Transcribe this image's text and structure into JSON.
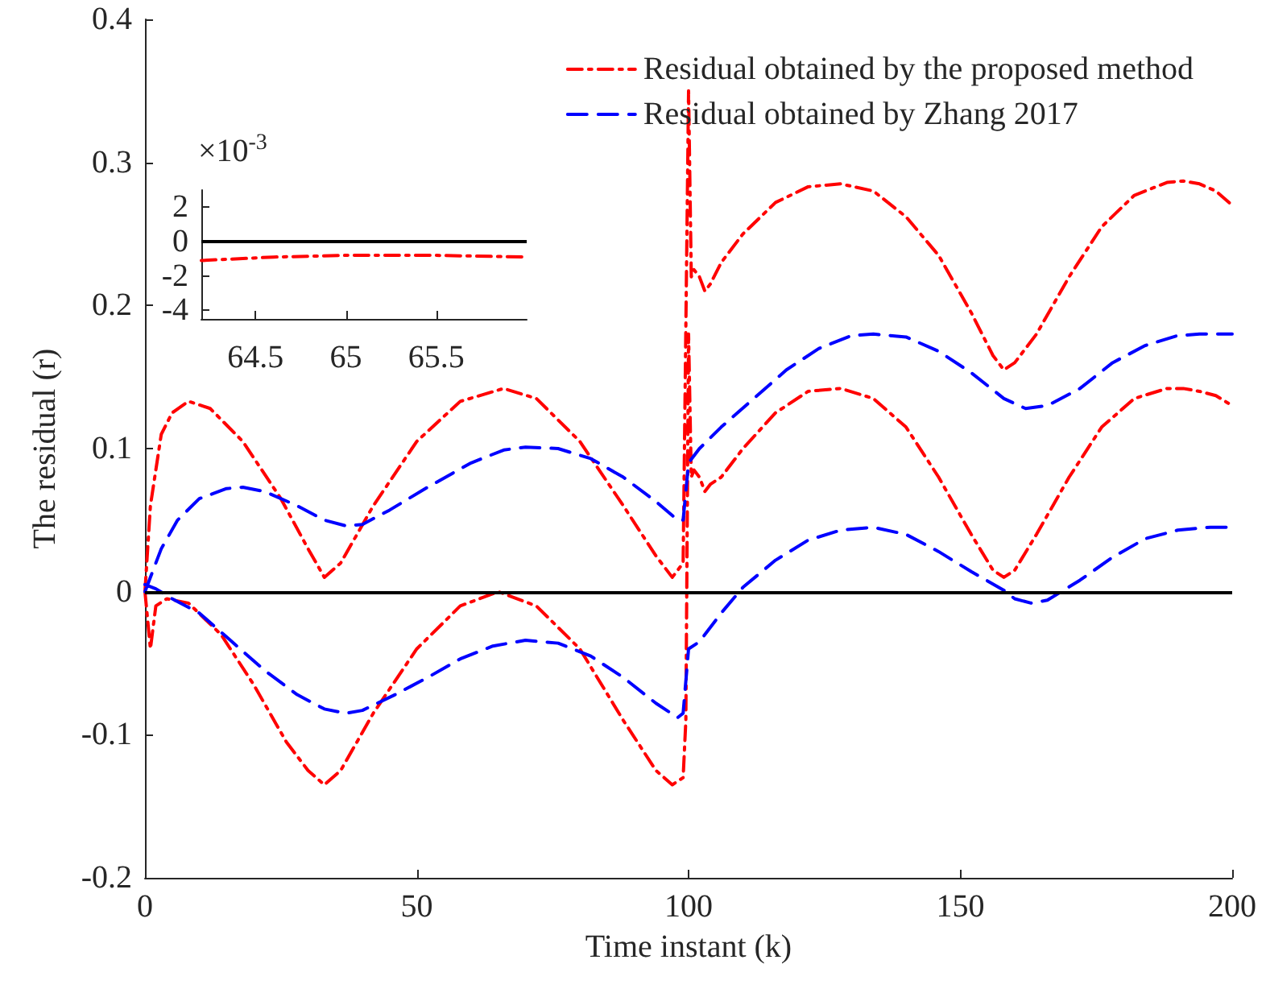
{
  "chart_data": [
    {
      "type": "line",
      "xlabel": "Time instant (k)",
      "ylabel": "The residual (r)",
      "xlim": [
        0,
        200
      ],
      "xticks": [
        0,
        50,
        100,
        150,
        200
      ],
      "ylim": [
        -0.2,
        0.4
      ],
      "yticks": [
        -0.2,
        -0.1,
        0,
        0.1,
        0.2,
        0.3,
        0.4
      ],
      "grid": false,
      "legend": "top right",
      "marker": "none",
      "ref_lines": [
        {
          "axis": "y",
          "value": 0,
          "color": "#000000",
          "line_style": "solid"
        }
      ],
      "series": [
        {
          "name": "Residual obtained by the proposed method",
          "color": "#ff0000",
          "line_style": "dashdot",
          "x": [
            0,
            1,
            3,
            5,
            8,
            12,
            18,
            25,
            30,
            33,
            36,
            42,
            50,
            58,
            66,
            72,
            80,
            88,
            94,
            97,
            99,
            100,
            100.5,
            101,
            102,
            103,
            104,
            106,
            110,
            116,
            122,
            128,
            134,
            140,
            146,
            152,
            156,
            158,
            160,
            164,
            170,
            176,
            182,
            188,
            191,
            194,
            197,
            200,
            null,
            0,
            1,
            2,
            4,
            8,
            14,
            20,
            26,
            30,
            33,
            36,
            42,
            50,
            58,
            65,
            72,
            80,
            88,
            94,
            97,
            99,
            99.5,
            100,
            100.5,
            101,
            102,
            103,
            104,
            106,
            110,
            116,
            122,
            128,
            134,
            140,
            146,
            152,
            156,
            158,
            160,
            164,
            170,
            176,
            182,
            188,
            191,
            194,
            197,
            200
          ],
          "values": [
            0,
            0.06,
            0.11,
            0.125,
            0.133,
            0.128,
            0.105,
            0.065,
            0.03,
            0.01,
            0.02,
            0.06,
            0.105,
            0.133,
            0.142,
            0.135,
            0.105,
            0.06,
            0.025,
            0.01,
            0.02,
            0.35,
            0.22,
            0.225,
            0.22,
            0.21,
            0.215,
            0.23,
            0.25,
            0.272,
            0.283,
            0.285,
            0.28,
            0.262,
            0.235,
            0.195,
            0.165,
            0.155,
            0.16,
            0.18,
            0.22,
            0.255,
            0.277,
            0.286,
            0.287,
            0.285,
            0.28,
            0.27,
            null,
            0,
            -0.04,
            -0.01,
            -0.005,
            -0.008,
            -0.03,
            -0.065,
            -0.105,
            -0.125,
            -0.135,
            -0.125,
            -0.085,
            -0.04,
            -0.01,
            0,
            -0.01,
            -0.04,
            -0.09,
            -0.125,
            -0.135,
            -0.13,
            -0.09,
            0.18,
            0.08,
            0.085,
            0.08,
            0.07,
            0.075,
            0.08,
            0.1,
            0.125,
            0.14,
            0.142,
            0.135,
            0.115,
            0.08,
            0.04,
            0.015,
            0.01,
            0.015,
            0.04,
            0.08,
            0.115,
            0.135,
            0.142,
            0.142,
            0.14,
            0.137,
            0.13
          ]
        },
        {
          "name": "Residual obtained by Zhang 2017",
          "color": "#0000ff",
          "line_style": "dashed",
          "x": [
            0,
            3,
            6,
            10,
            15,
            18,
            22,
            28,
            33,
            37,
            40,
            45,
            52,
            60,
            66,
            70,
            76,
            82,
            88,
            94,
            98,
            99,
            100,
            102,
            106,
            112,
            118,
            124,
            130,
            134,
            140,
            146,
            152,
            158,
            162,
            166,
            172,
            178,
            184,
            190,
            194,
            200,
            null,
            0,
            2,
            5,
            10,
            16,
            22,
            28,
            33,
            37,
            40,
            46,
            52,
            58,
            64,
            70,
            76,
            82,
            88,
            94,
            98,
            99,
            100,
            102,
            106,
            110,
            116,
            122,
            128,
            134,
            140,
            146,
            152,
            158,
            160,
            163,
            166,
            172,
            178,
            184,
            190,
            196,
            200
          ],
          "values": [
            0,
            0.03,
            0.05,
            0.065,
            0.072,
            0.073,
            0.07,
            0.06,
            0.05,
            0.046,
            0.047,
            0.057,
            0.073,
            0.09,
            0.099,
            0.101,
            0.1,
            0.093,
            0.08,
            0.063,
            0.05,
            0.05,
            0.09,
            0.1,
            0.115,
            0.135,
            0.155,
            0.17,
            0.179,
            0.18,
            0.178,
            0.168,
            0.153,
            0.135,
            0.128,
            0.13,
            0.142,
            0.16,
            0.172,
            0.179,
            0.18,
            0.18,
            null,
            0.005,
            0.002,
            -0.005,
            -0.015,
            -0.035,
            -0.055,
            -0.072,
            -0.082,
            -0.085,
            -0.083,
            -0.072,
            -0.06,
            -0.047,
            -0.038,
            -0.034,
            -0.036,
            -0.045,
            -0.06,
            -0.078,
            -0.088,
            -0.085,
            -0.04,
            -0.035,
            -0.015,
            0.003,
            0.022,
            0.036,
            0.043,
            0.045,
            0.04,
            0.028,
            0.014,
            0.001,
            -0.005,
            -0.008,
            -0.006,
            0.008,
            0.024,
            0.037,
            0.043,
            0.045,
            0.045
          ]
        }
      ]
    },
    {
      "type": "line",
      "xlim": [
        64.2,
        66
      ],
      "xticks": [
        64.5,
        65,
        65.5
      ],
      "ylim": [
        -4.5,
        3
      ],
      "yticks": [
        -4,
        -2,
        0,
        2
      ],
      "grid": false,
      "marker": "none",
      "annotations": [
        "×10$^{-3}$"
      ],
      "ref_lines": [
        {
          "axis": "y",
          "value": 0,
          "color": "#000000",
          "line_style": "solid"
        }
      ],
      "series": [
        {
          "color": "#ff0000",
          "line_style": "dashdot",
          "x": [
            64.2,
            64.6,
            65,
            65.5,
            66
          ],
          "values": [
            -1.1,
            -0.9,
            -0.8,
            -0.8,
            -0.9
          ]
        }
      ]
    }
  ]
}
